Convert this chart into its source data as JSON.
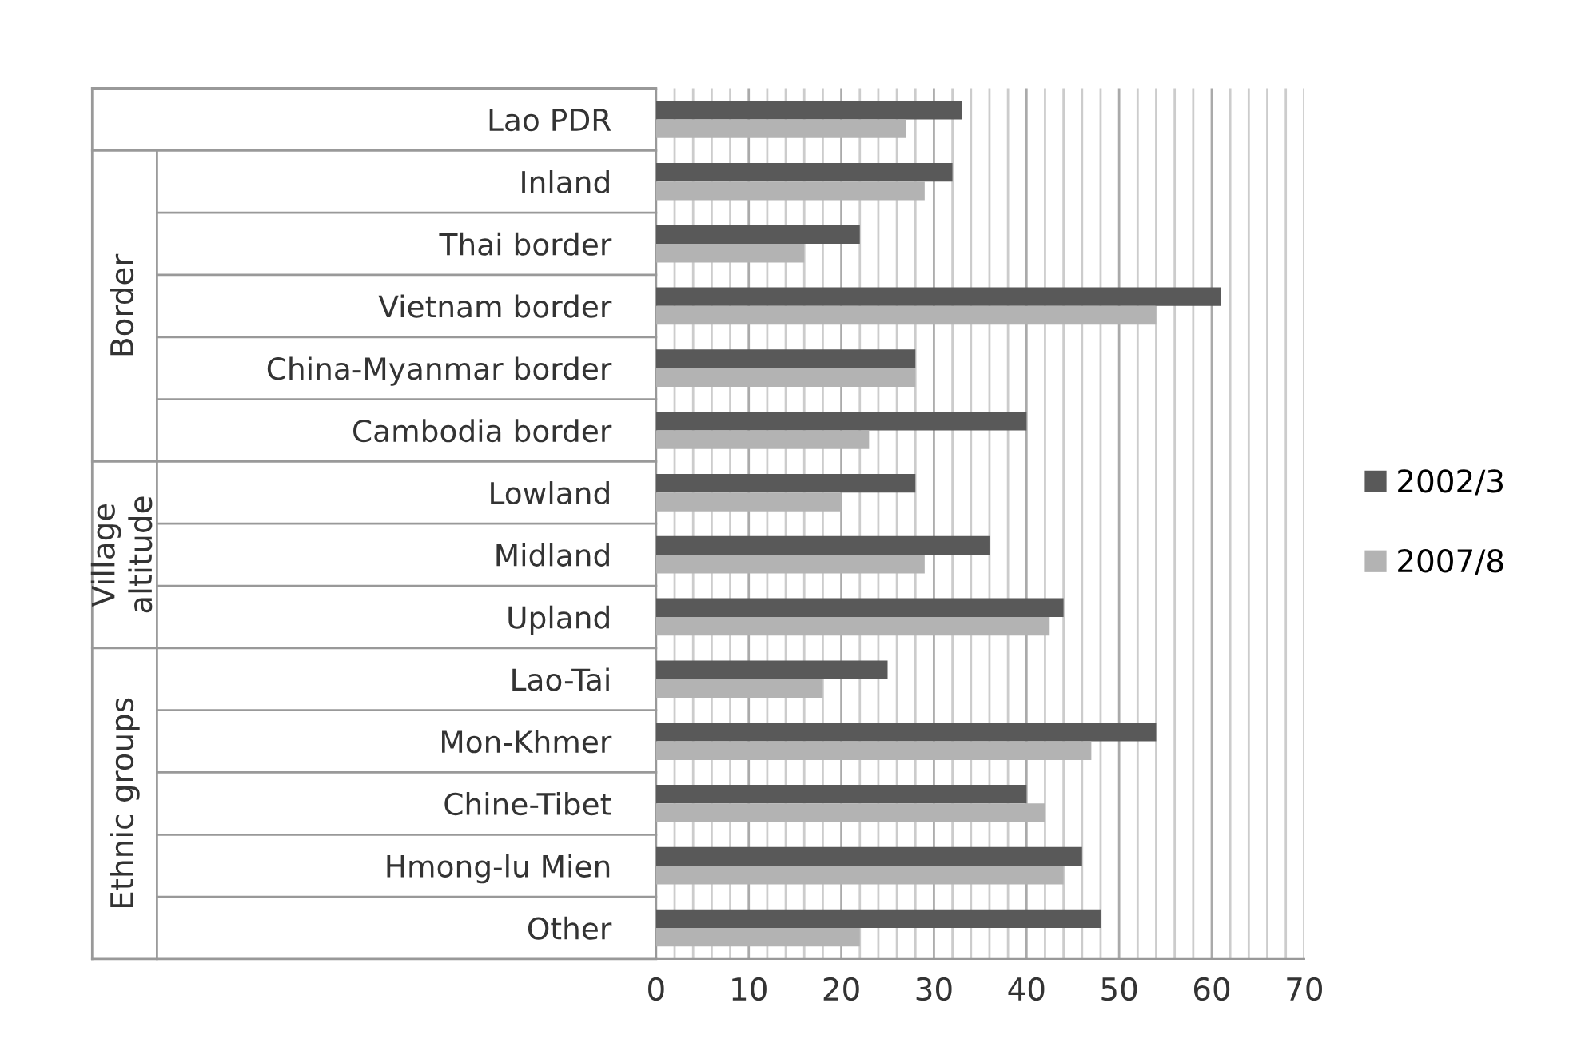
{
  "chart_data": {
    "type": "bar",
    "orientation": "horizontal",
    "categories": [
      "Lao PDR",
      "Inland",
      "Thai border",
      "Vietnam border",
      "China-Myanmar border",
      "Cambodia border",
      "Lowland",
      "Midland",
      "Upland",
      "Lao-Tai",
      "Mon-Khmer",
      "Chine-Tibet",
      "Hmong-lu Mien",
      "Other"
    ],
    "series": [
      {
        "name": "2002/3",
        "color": "#595959",
        "values": [
          33,
          32,
          22,
          61,
          28,
          40,
          28,
          36,
          44,
          25,
          54,
          40,
          46,
          48
        ]
      },
      {
        "name": "2007/8",
        "color": "#b3b3b3",
        "values": [
          27,
          29,
          16,
          54,
          28,
          23,
          20,
          29,
          42.5,
          18,
          47,
          42,
          44,
          22
        ]
      }
    ],
    "xlim": [
      0,
      70
    ],
    "xticks": [
      0,
      {
        "value": 2,
        "label": null
      },
      {
        "value": 4,
        "label": null
      },
      {
        "value": 6,
        "label": null
      },
      {
        "value": 8,
        "label": null
      },
      10,
      {
        "value": 12,
        "label": null
      },
      {
        "value": 14,
        "label": null
      },
      {
        "value": 16,
        "label": null
      },
      {
        "value": 18,
        "label": null
      },
      20,
      {
        "value": 22,
        "label": null
      },
      {
        "value": 24,
        "label": null
      },
      {
        "value": 26,
        "label": null
      },
      {
        "value": 28,
        "label": null
      },
      30,
      {
        "value": 32,
        "label": null
      },
      {
        "value": 34,
        "label": null
      },
      {
        "value": 36,
        "label": null
      },
      {
        "value": 38,
        "label": null
      },
      40,
      {
        "value": 42,
        "label": null
      },
      {
        "value": 44,
        "label": null
      },
      {
        "value": 46,
        "label": null
      },
      {
        "value": 48,
        "label": null
      },
      50,
      {
        "value": 52,
        "label": null
      },
      {
        "value": 54,
        "label": null
      },
      {
        "value": 56,
        "label": null
      },
      {
        "value": 58,
        "label": null
      },
      60,
      {
        "value": 62,
        "label": null
      },
      {
        "value": 64,
        "label": null
      },
      {
        "value": 66,
        "label": null
      },
      {
        "value": 68,
        "label": null
      },
      70
    ],
    "grid": "x",
    "legend": "right",
    "annotations": [
      "Border",
      "Village\naltitude",
      "Ethnic groups"
    ]
  }
}
